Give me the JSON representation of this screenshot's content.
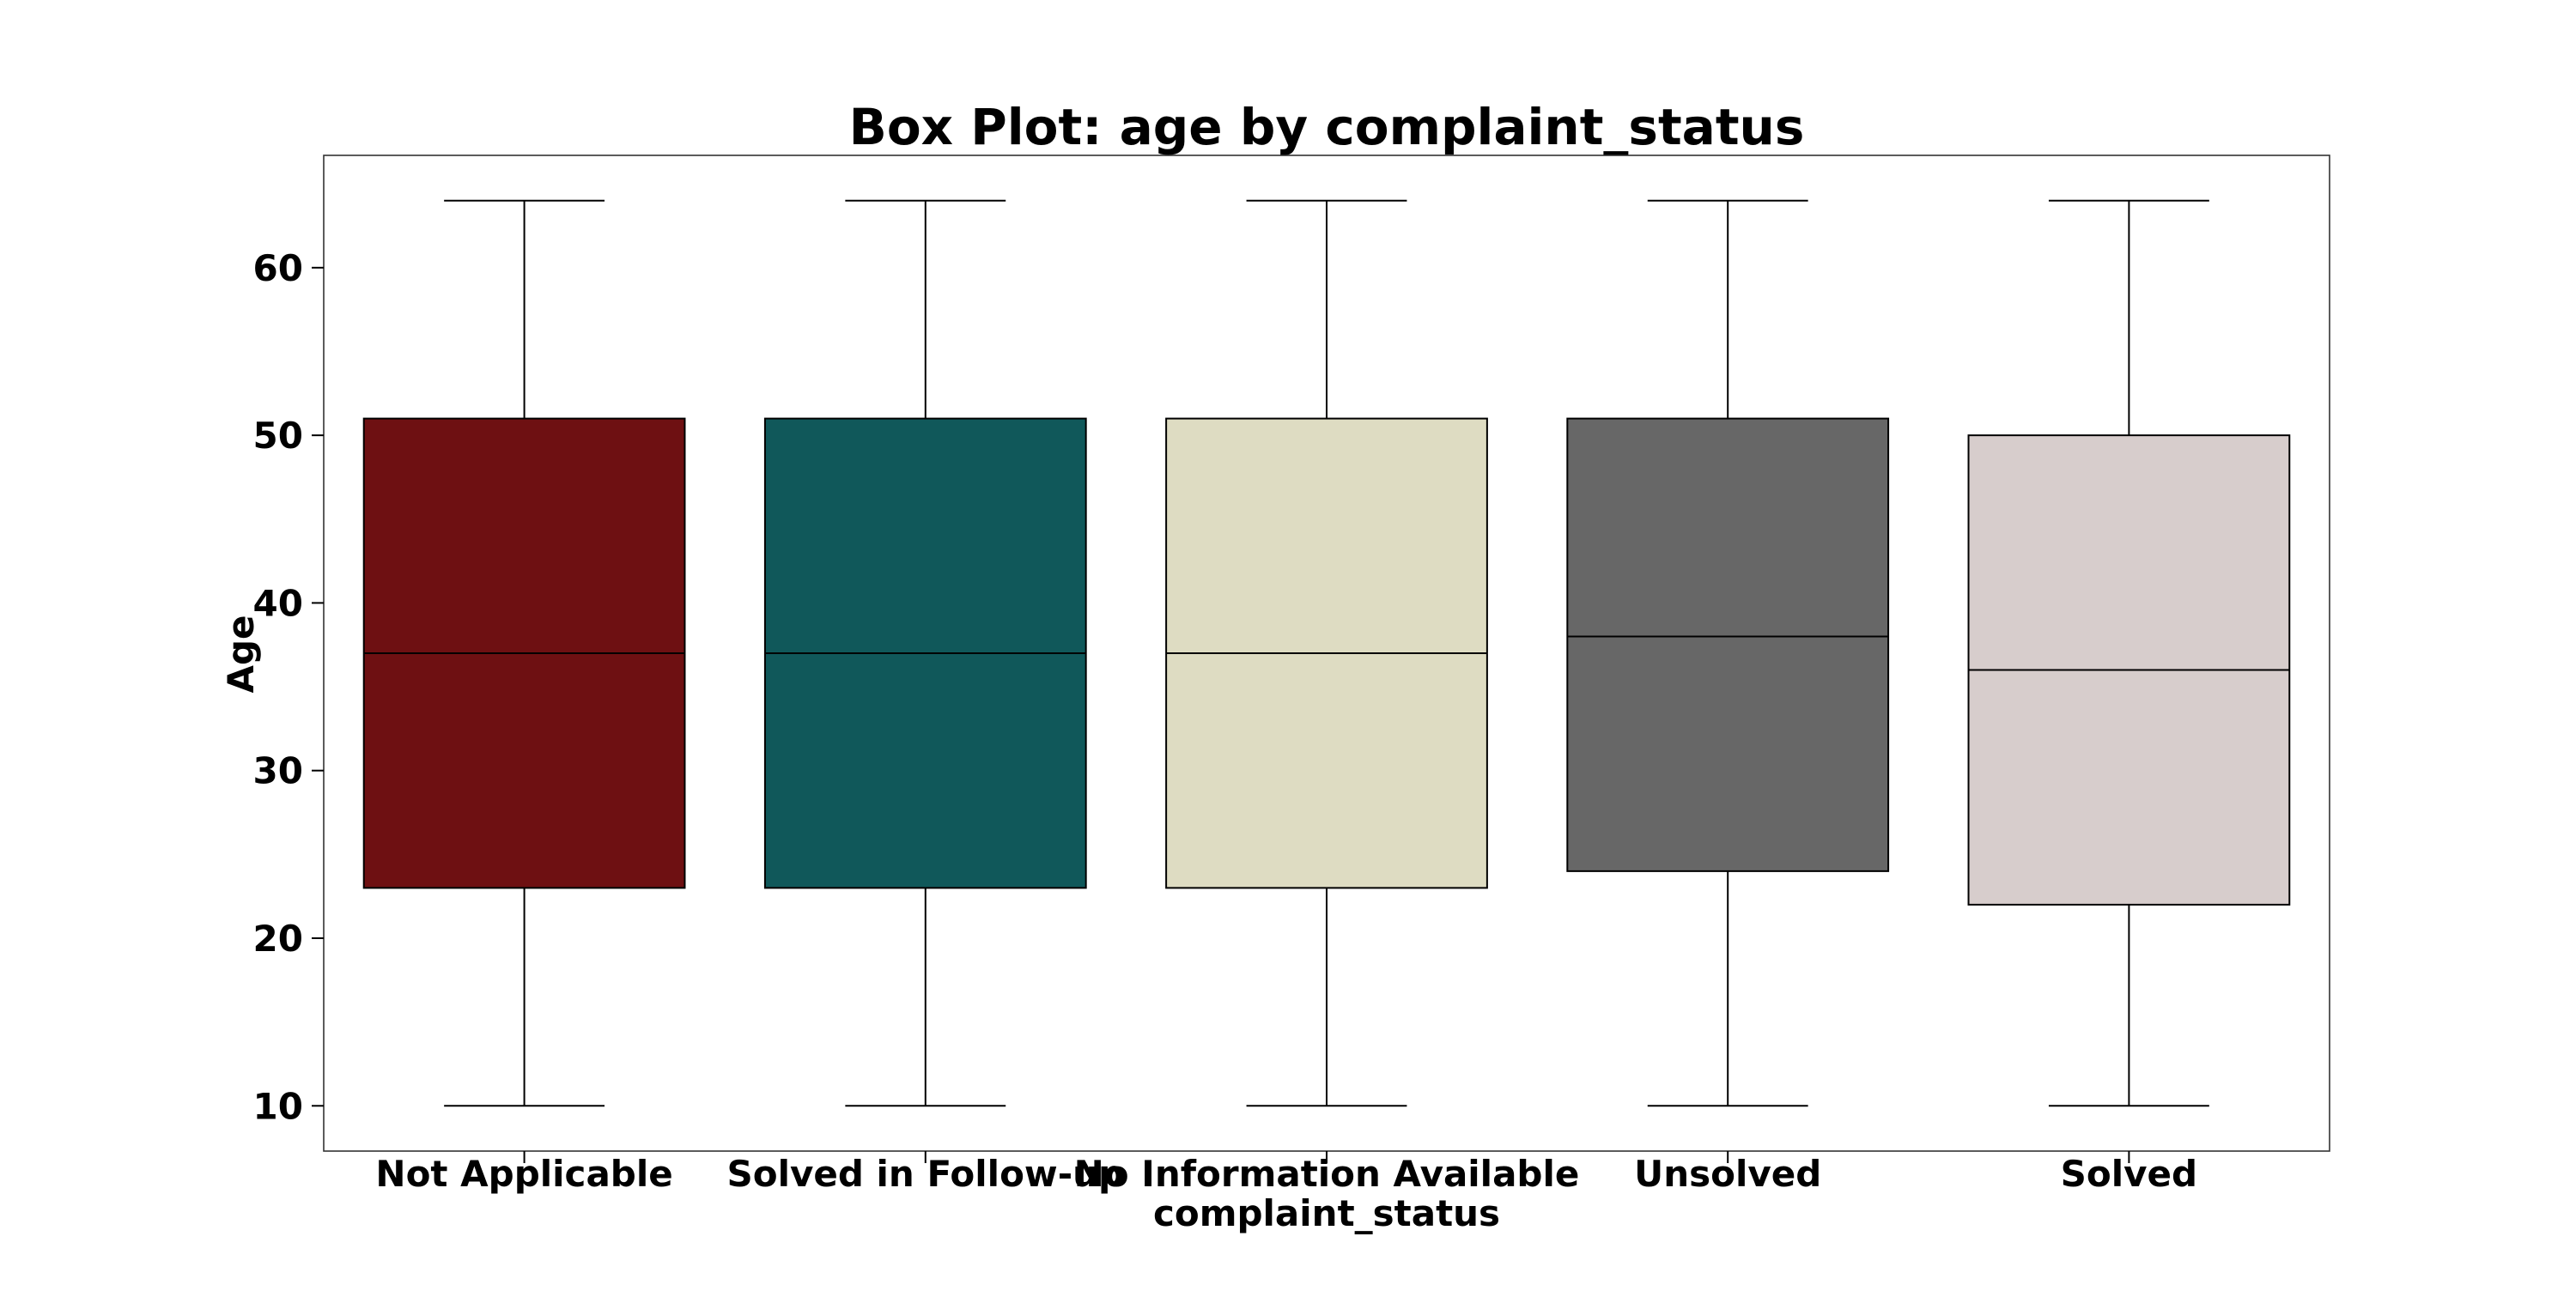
{
  "chart_data": {
    "type": "box",
    "title": "Box Plot: age by complaint_status",
    "xlabel": "complaint_status",
    "ylabel": "Age",
    "ylim": [
      7.3,
      66.7
    ],
    "yticks": [
      10,
      20,
      30,
      40,
      50,
      60
    ],
    "grid": false,
    "categories": [
      "Not Applicable",
      "Solved in Follow-up",
      "No Information Available",
      "Unsolved",
      "Solved"
    ],
    "boxes": [
      {
        "category": "Not Applicable",
        "whisker_low": 10,
        "q1": 23,
        "median": 37,
        "q3": 51,
        "whisker_high": 64,
        "color": "#6e1012"
      },
      {
        "category": "Solved in Follow-up",
        "whisker_low": 10,
        "q1": 23,
        "median": 37,
        "q3": 51,
        "whisker_high": 64,
        "color": "#10585a"
      },
      {
        "category": "No Information Available",
        "whisker_low": 10,
        "q1": 23,
        "median": 37,
        "q3": 51,
        "whisker_high": 64,
        "color": "#dedcc2"
      },
      {
        "category": "Unsolved",
        "whisker_low": 10,
        "q1": 24,
        "median": 38,
        "q3": 51,
        "whisker_high": 64,
        "color": "#676767"
      },
      {
        "category": "Solved",
        "whisker_low": 10,
        "q1": 22,
        "median": 36,
        "q3": 50,
        "whisker_high": 64,
        "color": "#d7cdcc"
      }
    ]
  }
}
